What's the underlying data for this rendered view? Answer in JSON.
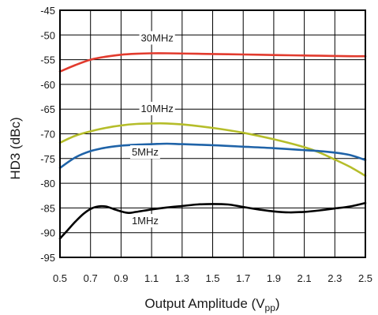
{
  "chart_data": {
    "type": "line",
    "xlabel": "Output Amplitude (V",
    "xlabel_sub": "pp",
    "xlabel_end": ")",
    "ylabel": "HD3 (dBc)",
    "xlim": [
      0.5,
      2.5
    ],
    "ylim": [
      -95,
      -45
    ],
    "x_ticks": [
      "0.5",
      "0.7",
      "0.9",
      "1.1",
      "1.3",
      "1.5",
      "1.7",
      "1.9",
      "2.1",
      "2.3",
      "2.5"
    ],
    "y_ticks": [
      "-45",
      "-50",
      "-55",
      "-60",
      "-65",
      "-70",
      "-75",
      "-80",
      "-85",
      "-90",
      "-95"
    ],
    "grid": true,
    "series": [
      {
        "name": "30MHz",
        "color": "#e23b2e",
        "x": [
          0.5,
          0.6,
          0.7,
          0.8,
          0.9,
          1.0,
          1.1,
          1.2,
          1.4,
          1.6,
          1.8,
          2.0,
          2.2,
          2.4,
          2.5
        ],
        "y": [
          -57.4,
          -56.1,
          -55.0,
          -54.4,
          -54.0,
          -53.8,
          -53.7,
          -53.7,
          -53.8,
          -53.9,
          -54.0,
          -54.1,
          -54.2,
          -54.3,
          -54.3
        ]
      },
      {
        "name": "10MHz",
        "color": "#b5bd2a",
        "x": [
          0.5,
          0.6,
          0.7,
          0.8,
          0.9,
          1.0,
          1.1,
          1.2,
          1.3,
          1.5,
          1.7,
          1.9,
          2.1,
          2.2,
          2.3,
          2.4,
          2.5
        ],
        "y": [
          -71.8,
          -70.4,
          -69.5,
          -68.8,
          -68.3,
          -68.0,
          -67.9,
          -67.9,
          -68.1,
          -68.8,
          -69.8,
          -71.1,
          -72.7,
          -73.8,
          -75.2,
          -76.7,
          -78.5
        ]
      },
      {
        "name": "5MHz",
        "color": "#1f63a8",
        "x": [
          0.5,
          0.6,
          0.7,
          0.8,
          0.9,
          1.0,
          1.1,
          1.2,
          1.3,
          1.5,
          1.7,
          1.9,
          2.1,
          2.2,
          2.3,
          2.4,
          2.5
        ],
        "y": [
          -76.9,
          -74.8,
          -73.5,
          -72.8,
          -72.4,
          -72.2,
          -72.1,
          -72.0,
          -72.1,
          -72.3,
          -72.6,
          -72.9,
          -73.3,
          -73.5,
          -73.8,
          -74.3,
          -75.3
        ]
      },
      {
        "name": "1MHz",
        "color": "#000000",
        "x": [
          0.5,
          0.55,
          0.6,
          0.65,
          0.7,
          0.75,
          0.8,
          0.85,
          0.9,
          0.95,
          1.0,
          1.1,
          1.2,
          1.3,
          1.4,
          1.5,
          1.6,
          1.7,
          1.8,
          1.9,
          2.0,
          2.1,
          2.2,
          2.3,
          2.4,
          2.5
        ],
        "y": [
          -91.2,
          -89.5,
          -87.8,
          -86.3,
          -85.2,
          -84.7,
          -84.7,
          -85.2,
          -85.7,
          -86.0,
          -85.8,
          -85.3,
          -84.9,
          -84.6,
          -84.3,
          -84.2,
          -84.3,
          -84.8,
          -85.3,
          -85.7,
          -85.9,
          -85.8,
          -85.5,
          -85.1,
          -84.7,
          -84.0
        ]
      }
    ],
    "series_labels": [
      {
        "series": "30MHz",
        "x": 1.03,
        "y": -51.3
      },
      {
        "series": "10MHz",
        "x": 1.03,
        "y": -65.6
      },
      {
        "series": "5MHz",
        "x": 0.97,
        "y": -74.4
      },
      {
        "series": "1MHz",
        "x": 0.97,
        "y": -88.3
      }
    ]
  }
}
